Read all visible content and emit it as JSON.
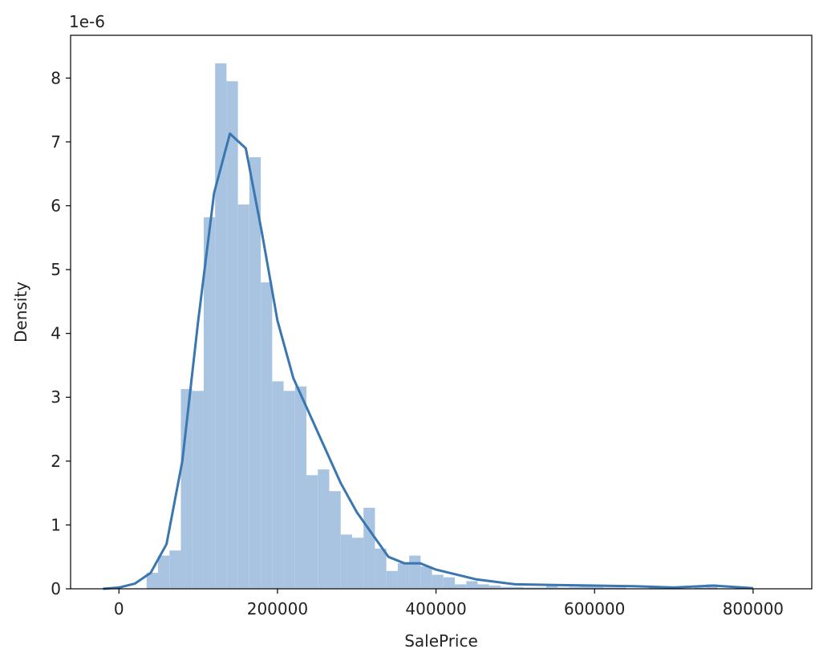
{
  "chart_data": {
    "type": "histogram",
    "xlabel": "SalePrice",
    "ylabel": "Density",
    "offset_text": "1e-6",
    "color": "#a9c4e0",
    "bins": [
      34900,
      49302,
      63704,
      78106,
      92508,
      106910,
      121312,
      135714,
      150116,
      164518,
      178920,
      193322,
      207724,
      222126,
      236528,
      250930,
      265332,
      279734,
      294136,
      308538,
      322940,
      337342,
      351744,
      366146,
      380548,
      394950,
      409352,
      423754,
      438156,
      452558,
      466960,
      481362,
      495764,
      510166,
      524568,
      538970,
      553372,
      567774,
      582176,
      596578,
      610980,
      625382,
      639784,
      654186,
      668588,
      682990,
      697392,
      711794,
      726196,
      740598,
      755000
    ],
    "values": [
      0.25,
      0.52,
      0.6,
      3.13,
      3.1,
      5.82,
      8.23,
      7.95,
      6.02,
      6.76,
      4.8,
      3.25,
      3.1,
      3.17,
      1.78,
      1.87,
      1.53,
      0.85,
      0.8,
      1.27,
      0.63,
      0.28,
      0.4,
      0.52,
      0.35,
      0.22,
      0.18,
      0.07,
      0.12,
      0.07,
      0.05,
      0.03,
      0.03,
      0.02,
      0.02,
      0.07,
      0.02,
      0.03,
      0.05,
      0.03,
      0.02,
      0.02,
      0,
      0,
      0.02,
      0,
      0.02,
      0,
      0.02,
      0.07
    ],
    "kde": {
      "color": "#3a76af",
      "x": [
        -20000,
        0,
        20000,
        40000,
        60000,
        80000,
        100000,
        120000,
        140000,
        160000,
        180000,
        200000,
        220000,
        240000,
        260000,
        280000,
        300000,
        320000,
        340000,
        360000,
        380000,
        400000,
        450000,
        500000,
        550000,
        600000,
        650000,
        700000,
        750000,
        800000
      ],
      "values": [
        0.0,
        0.02,
        0.08,
        0.25,
        0.7,
        2.0,
        4.2,
        6.2,
        7.13,
        6.9,
        5.6,
        4.2,
        3.3,
        2.75,
        2.2,
        1.65,
        1.2,
        0.85,
        0.5,
        0.4,
        0.4,
        0.3,
        0.15,
        0.07,
        0.06,
        0.05,
        0.04,
        0.02,
        0.05,
        0.01
      ]
    },
    "xlim": [
      -61000,
      874000
    ],
    "ylim": [
      0,
      8.67
    ],
    "xticks": [
      0,
      200000,
      400000,
      600000,
      800000
    ],
    "yticks": [
      0,
      1,
      2,
      3,
      4,
      5,
      6,
      7,
      8
    ]
  }
}
